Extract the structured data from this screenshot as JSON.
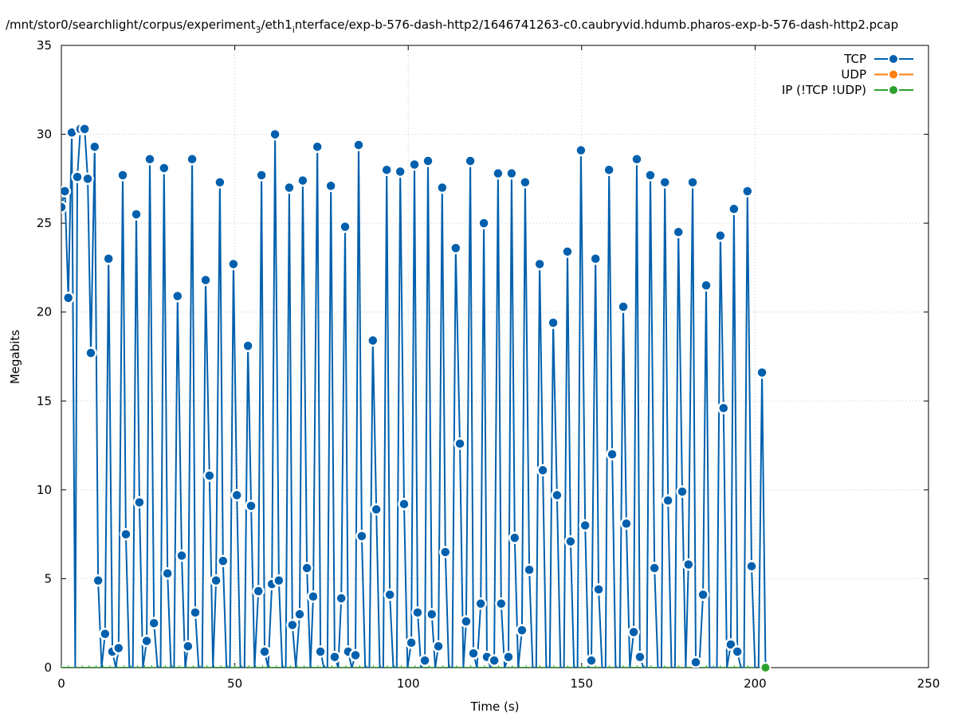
{
  "chart_data": {
    "type": "line",
    "title_parts": [
      "/mnt/stor0/searchlight/corpus/experiment",
      "3",
      "/eth1",
      "i",
      "nterface/exp-b-576-dash-http2/1646741263-c0.caubryvid.hdumb.pharos-exp-b-576-dash-http2.pcap"
    ],
    "xlabel": "Time (s)",
    "ylabel": "Megabits",
    "xlim": [
      0,
      250
    ],
    "ylim": [
      0,
      35
    ],
    "xticks": [
      0,
      50,
      100,
      150,
      200,
      250
    ],
    "yticks": [
      0,
      5,
      10,
      15,
      20,
      25,
      30,
      35
    ],
    "grid": true,
    "legend_position": "top-right",
    "note": "time step 1 s; gaps between listed TCP points are 0 Mb",
    "series": [
      {
        "name": "TCP",
        "color": "#0060ad",
        "points": [
          [
            0,
            25.9
          ],
          [
            1,
            26.8
          ],
          [
            2,
            20.8
          ],
          [
            3,
            30.1
          ],
          [
            4.6,
            27.6
          ],
          [
            5.5,
            30.3
          ],
          [
            6.7,
            30.3
          ],
          [
            7.6,
            27.5
          ],
          [
            8.5,
            17.7
          ],
          [
            9.6,
            29.3
          ],
          [
            10.6,
            4.9
          ],
          [
            12.6,
            1.9
          ],
          [
            13.6,
            23.0
          ],
          [
            14.7,
            0.9
          ],
          [
            16.5,
            1.1
          ],
          [
            17.7,
            27.7
          ],
          [
            18.6,
            7.5
          ],
          [
            21.6,
            25.5
          ],
          [
            22.5,
            9.3
          ],
          [
            24.6,
            1.5
          ],
          [
            25.5,
            28.6
          ],
          [
            26.7,
            2.5
          ],
          [
            29.6,
            28.1
          ],
          [
            30.6,
            5.3
          ],
          [
            33.5,
            20.9
          ],
          [
            34.7,
            6.3
          ],
          [
            36.5,
            1.2
          ],
          [
            37.7,
            28.6
          ],
          [
            38.6,
            3.1
          ],
          [
            41.6,
            21.8
          ],
          [
            42.7,
            10.8
          ],
          [
            44.6,
            4.9
          ],
          [
            45.7,
            27.3
          ],
          [
            46.6,
            6.0
          ],
          [
            49.6,
            22.7
          ],
          [
            50.6,
            9.7
          ],
          [
            53.8,
            18.1
          ],
          [
            54.7,
            9.1
          ],
          [
            56.8,
            4.3
          ],
          [
            57.7,
            27.7
          ],
          [
            58.6,
            0.9
          ],
          [
            60.7,
            4.7
          ],
          [
            61.6,
            30.0
          ],
          [
            62.7,
            4.9
          ],
          [
            65.7,
            27.0
          ],
          [
            66.6,
            2.4
          ],
          [
            68.7,
            3.0
          ],
          [
            69.6,
            27.4
          ],
          [
            70.8,
            5.6
          ],
          [
            72.6,
            4.0
          ],
          [
            73.8,
            29.3
          ],
          [
            74.7,
            0.9
          ],
          [
            77.7,
            27.1
          ],
          [
            78.8,
            0.6
          ],
          [
            80.7,
            3.9
          ],
          [
            81.8,
            24.8
          ],
          [
            82.7,
            0.9
          ],
          [
            84.8,
            0.7
          ],
          [
            85.7,
            29.4
          ],
          [
            86.6,
            7.4
          ],
          [
            89.8,
            18.4
          ],
          [
            90.8,
            8.9
          ],
          [
            93.8,
            28.0
          ],
          [
            94.7,
            4.1
          ],
          [
            97.7,
            27.9
          ],
          [
            98.8,
            9.2
          ],
          [
            100.9,
            1.4
          ],
          [
            101.8,
            28.3
          ],
          [
            102.7,
            3.1
          ],
          [
            104.8,
            0.4
          ],
          [
            105.7,
            28.5
          ],
          [
            106.8,
            3.0
          ],
          [
            108.7,
            1.2
          ],
          [
            109.8,
            27.0
          ],
          [
            110.7,
            6.5
          ],
          [
            113.7,
            23.6
          ],
          [
            114.9,
            12.6
          ],
          [
            116.7,
            2.6
          ],
          [
            117.9,
            28.5
          ],
          [
            118.8,
            0.8
          ],
          [
            120.9,
            3.6
          ],
          [
            121.8,
            25.0
          ],
          [
            122.7,
            0.6
          ],
          [
            124.8,
            0.4
          ],
          [
            125.9,
            27.8
          ],
          [
            126.8,
            3.6
          ],
          [
            128.9,
            0.6
          ],
          [
            129.8,
            27.8
          ],
          [
            130.7,
            7.3
          ],
          [
            132.8,
            2.1
          ],
          [
            133.7,
            27.3
          ],
          [
            134.9,
            5.5
          ],
          [
            137.9,
            22.7
          ],
          [
            138.8,
            11.1
          ],
          [
            141.8,
            19.4
          ],
          [
            142.9,
            9.7
          ],
          [
            145.9,
            23.4
          ],
          [
            146.8,
            7.1
          ],
          [
            149.8,
            29.1
          ],
          [
            151.0,
            8.0
          ],
          [
            152.8,
            0.4
          ],
          [
            154.0,
            23.0
          ],
          [
            154.9,
            4.4
          ],
          [
            157.9,
            28.0
          ],
          [
            158.8,
            12.0
          ],
          [
            162.0,
            20.3
          ],
          [
            162.9,
            8.1
          ],
          [
            165.0,
            2.0
          ],
          [
            165.9,
            28.6
          ],
          [
            166.8,
            0.6
          ],
          [
            169.8,
            27.7
          ],
          [
            171.0,
            5.6
          ],
          [
            174.0,
            27.3
          ],
          [
            174.9,
            9.4
          ],
          [
            177.9,
            24.5
          ],
          [
            179.0,
            9.9
          ],
          [
            180.8,
            5.8
          ],
          [
            182.0,
            27.3
          ],
          [
            182.9,
            0.3
          ],
          [
            185.0,
            4.1
          ],
          [
            185.9,
            21.5
          ],
          [
            190.0,
            24.3
          ],
          [
            190.9,
            14.6
          ],
          [
            193.0,
            1.3
          ],
          [
            193.9,
            25.8
          ],
          [
            194.9,
            0.9
          ],
          [
            197.8,
            26.8
          ],
          [
            199.0,
            5.7
          ],
          [
            202.0,
            16.6
          ]
        ]
      },
      {
        "name": "UDP",
        "color": "#ff7f0e",
        "points": []
      },
      {
        "name": "IP (!TCP  !UDP)",
        "color": "#2ca02c",
        "points": [
          [
            0,
            0
          ],
          [
            203,
            0
          ]
        ]
      }
    ]
  }
}
